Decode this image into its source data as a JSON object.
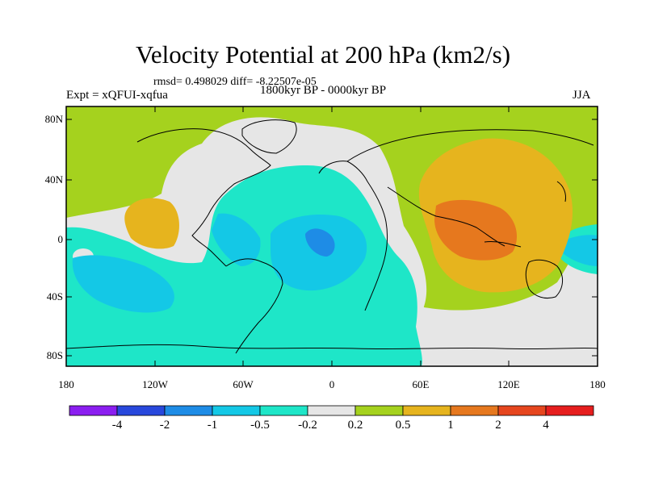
{
  "title": "Velocity Potential at 200 hPa (km2/s)",
  "stats": "rmsd= 0.498029 diff= -8.22507e-05",
  "left_label": "Expt = xQFUI-xqfua",
  "center_label": "1800kyr BP - 0000kyr BP",
  "right_label": "JJA",
  "lat_labels": [
    "80N",
    "40N",
    "0",
    "40S",
    "80S"
  ],
  "lon_labels": [
    "180",
    "120W",
    "60W",
    "0",
    "60E",
    "120E",
    "180"
  ],
  "colors": {
    "c_-4": "#8b1ef0",
    "c_-2": "#2848dc",
    "c_-1": "#1e8ce6",
    "c_-0.5": "#14c8e6",
    "c_-0.2": "#1ee6c8",
    "c_0": "#e6e6e6",
    "c_0.2": "#a5d21e",
    "c_0.5": "#e6b41e",
    "c_1": "#e6781e",
    "c_2": "#e6461e",
    "c_4": "#e61e1e"
  },
  "colorbar": {
    "levels": [
      -4,
      -2,
      -1,
      -0.5,
      -0.2,
      0.2,
      0.5,
      1,
      2,
      4
    ],
    "labels": [
      "-4",
      "-2",
      "-1",
      "-0.5",
      "-0.2",
      "0.2",
      "0.5",
      "1",
      "2",
      "4"
    ]
  }
}
